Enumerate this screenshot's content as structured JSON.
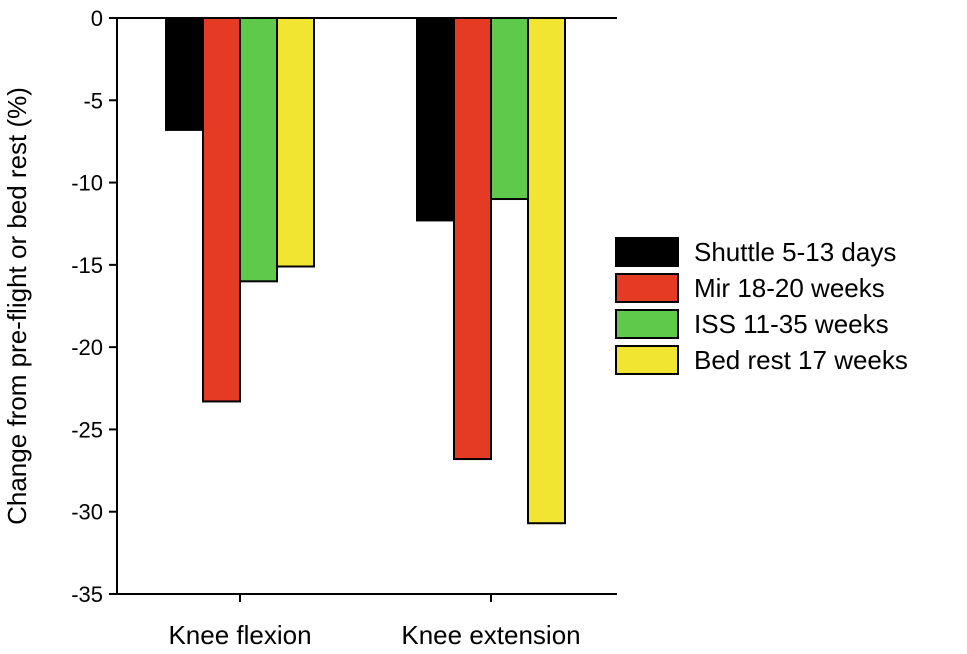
{
  "chart_data": {
    "type": "bar",
    "title": "",
    "xlabel": "",
    "ylabel": "Change from pre-flight or bed rest (%)",
    "ylim": [
      -35,
      0
    ],
    "yticks": [
      0,
      -5,
      -10,
      -15,
      -20,
      -25,
      -30,
      -35
    ],
    "categories": [
      "Knee flexion",
      "Knee extension"
    ],
    "series": [
      {
        "name": "Shuttle 5-13 days",
        "color": "#000000",
        "values": [
          -6.8,
          -12.3
        ]
      },
      {
        "name": "Mir 18-20 weeks",
        "color": "#e53a24",
        "values": [
          -23.3,
          -26.8
        ]
      },
      {
        "name": "ISS 11-35 weeks",
        "color": "#5ec94b",
        "values": [
          -16.0,
          -11.0
        ]
      },
      {
        "name": "Bed rest 17 weeks",
        "color": "#f2e531",
        "values": [
          -15.1,
          -30.7
        ]
      }
    ],
    "legend_position": "right",
    "grid": false
  }
}
